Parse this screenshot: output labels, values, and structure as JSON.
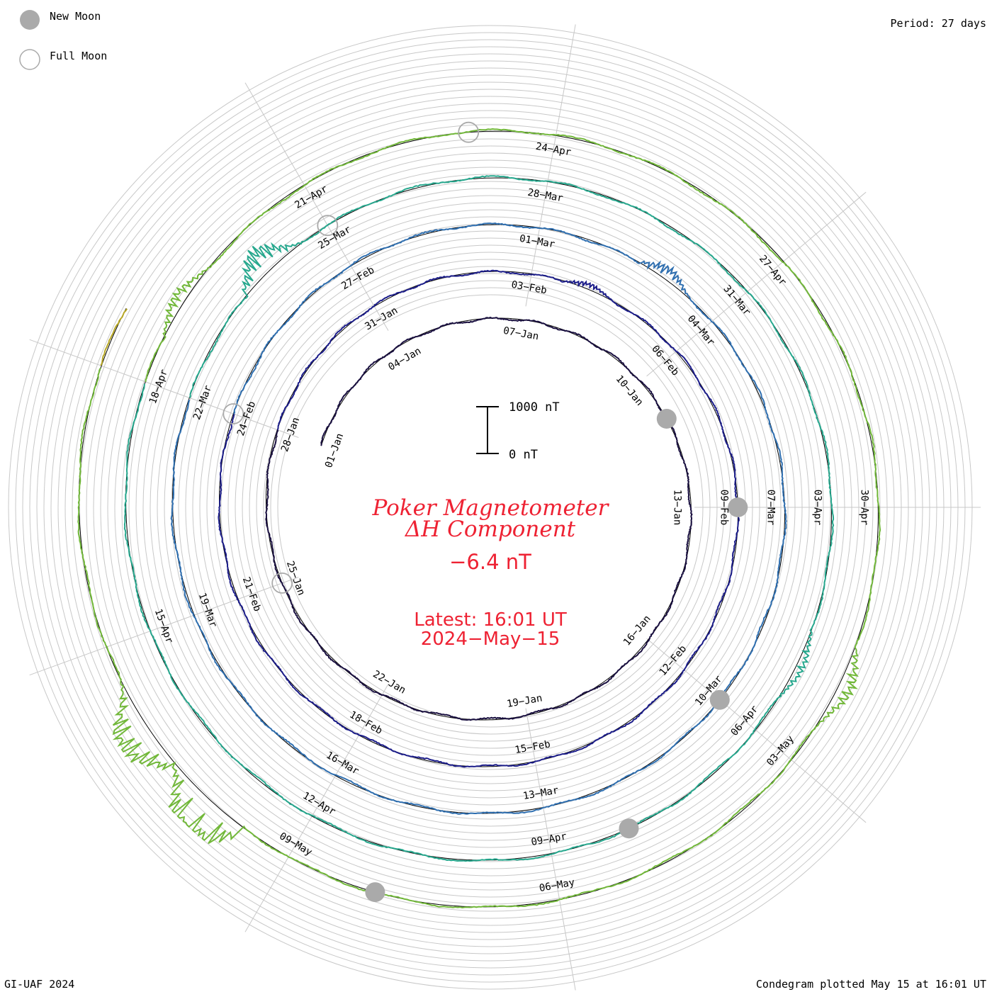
{
  "legend": {
    "new_moon": "New Moon",
    "full_moon": "Full Moon",
    "period": "Period: 27 days"
  },
  "title": {
    "line1": "Poker Magnetometer",
    "line2": "ΔH Component",
    "value": "−6.4 nT",
    "latest": "Latest: 16:01 UT",
    "date": "2024−May−15"
  },
  "scale": {
    "top": "1000 nT",
    "bottom": "0 nT"
  },
  "footer": {
    "left": "GI-UAF 2024",
    "right": "Condegram plotted May 15 at 16:01 UT"
  },
  "colors": {
    "moon_fill": "#aaaaaa",
    "title_red": "#ee2233",
    "grid": "#c8c8c8",
    "revolutions": [
      "#1a1040",
      "#1c1d8a",
      "#2f6fb0",
      "#27a88e",
      "#72b83a",
      "#b8a826",
      "#c0620f",
      "#b81818"
    ]
  },
  "chart_data": {
    "type": "condegram",
    "period_days": 27,
    "start": "2024-01-01",
    "latest": "2024-05-15 16:01 UT",
    "latest_value_nT": -6.4,
    "scale_nT": [
      0,
      1000
    ],
    "revolution_labels": [
      [
        "01−Jan",
        "04−Jan",
        "07−Jan",
        "10−Jan",
        "13−Jan",
        "16−Jan",
        "19−Jan",
        "22−Jan",
        "25−Jan"
      ],
      [
        "28−Jan",
        "31−Jan",
        "03−Feb",
        "06−Feb",
        "09−Feb",
        "12−Feb",
        "15−Feb",
        "18−Feb",
        "21−Feb"
      ],
      [
        "24−Feb",
        "27−Feb",
        "01−Mar",
        "04−Mar",
        "07−Mar",
        "10−Mar",
        "13−Mar",
        "16−Mar",
        "19−Mar"
      ],
      [
        "22−Mar",
        "25−Mar",
        "28−Mar",
        "31−Mar",
        "03−Apr",
        "06−Apr",
        "09−Apr",
        "12−Apr",
        "15−Apr"
      ],
      [
        "18−Apr",
        "21−Apr",
        "24−Apr",
        "27−Apr",
        "30−Apr",
        "03−May",
        "06−May",
        "09−May"
      ]
    ],
    "new_moons": [
      "2024-01-11",
      "2024-02-09",
      "2024-03-10",
      "2024-04-08",
      "2024-05-08"
    ],
    "full_moons": [
      "2024-01-25",
      "2024-02-24",
      "2024-03-25",
      "2024-04-23"
    ],
    "disturbances": [
      {
        "date": "2024-02-04",
        "peak_nT": 150
      },
      {
        "date": "2024-03-03",
        "peak_nT": 300
      },
      {
        "date": "2024-03-24",
        "peak_nT": 650
      },
      {
        "date": "2024-04-05",
        "peak_nT": 200
      },
      {
        "date": "2024-04-19",
        "peak_nT": 300
      },
      {
        "date": "2024-05-02",
        "peak_nT": 350
      },
      {
        "date": "2024-05-10",
        "peak_nT": 1400
      },
      {
        "date": "2024-05-11",
        "peak_nT": 1000
      }
    ]
  }
}
